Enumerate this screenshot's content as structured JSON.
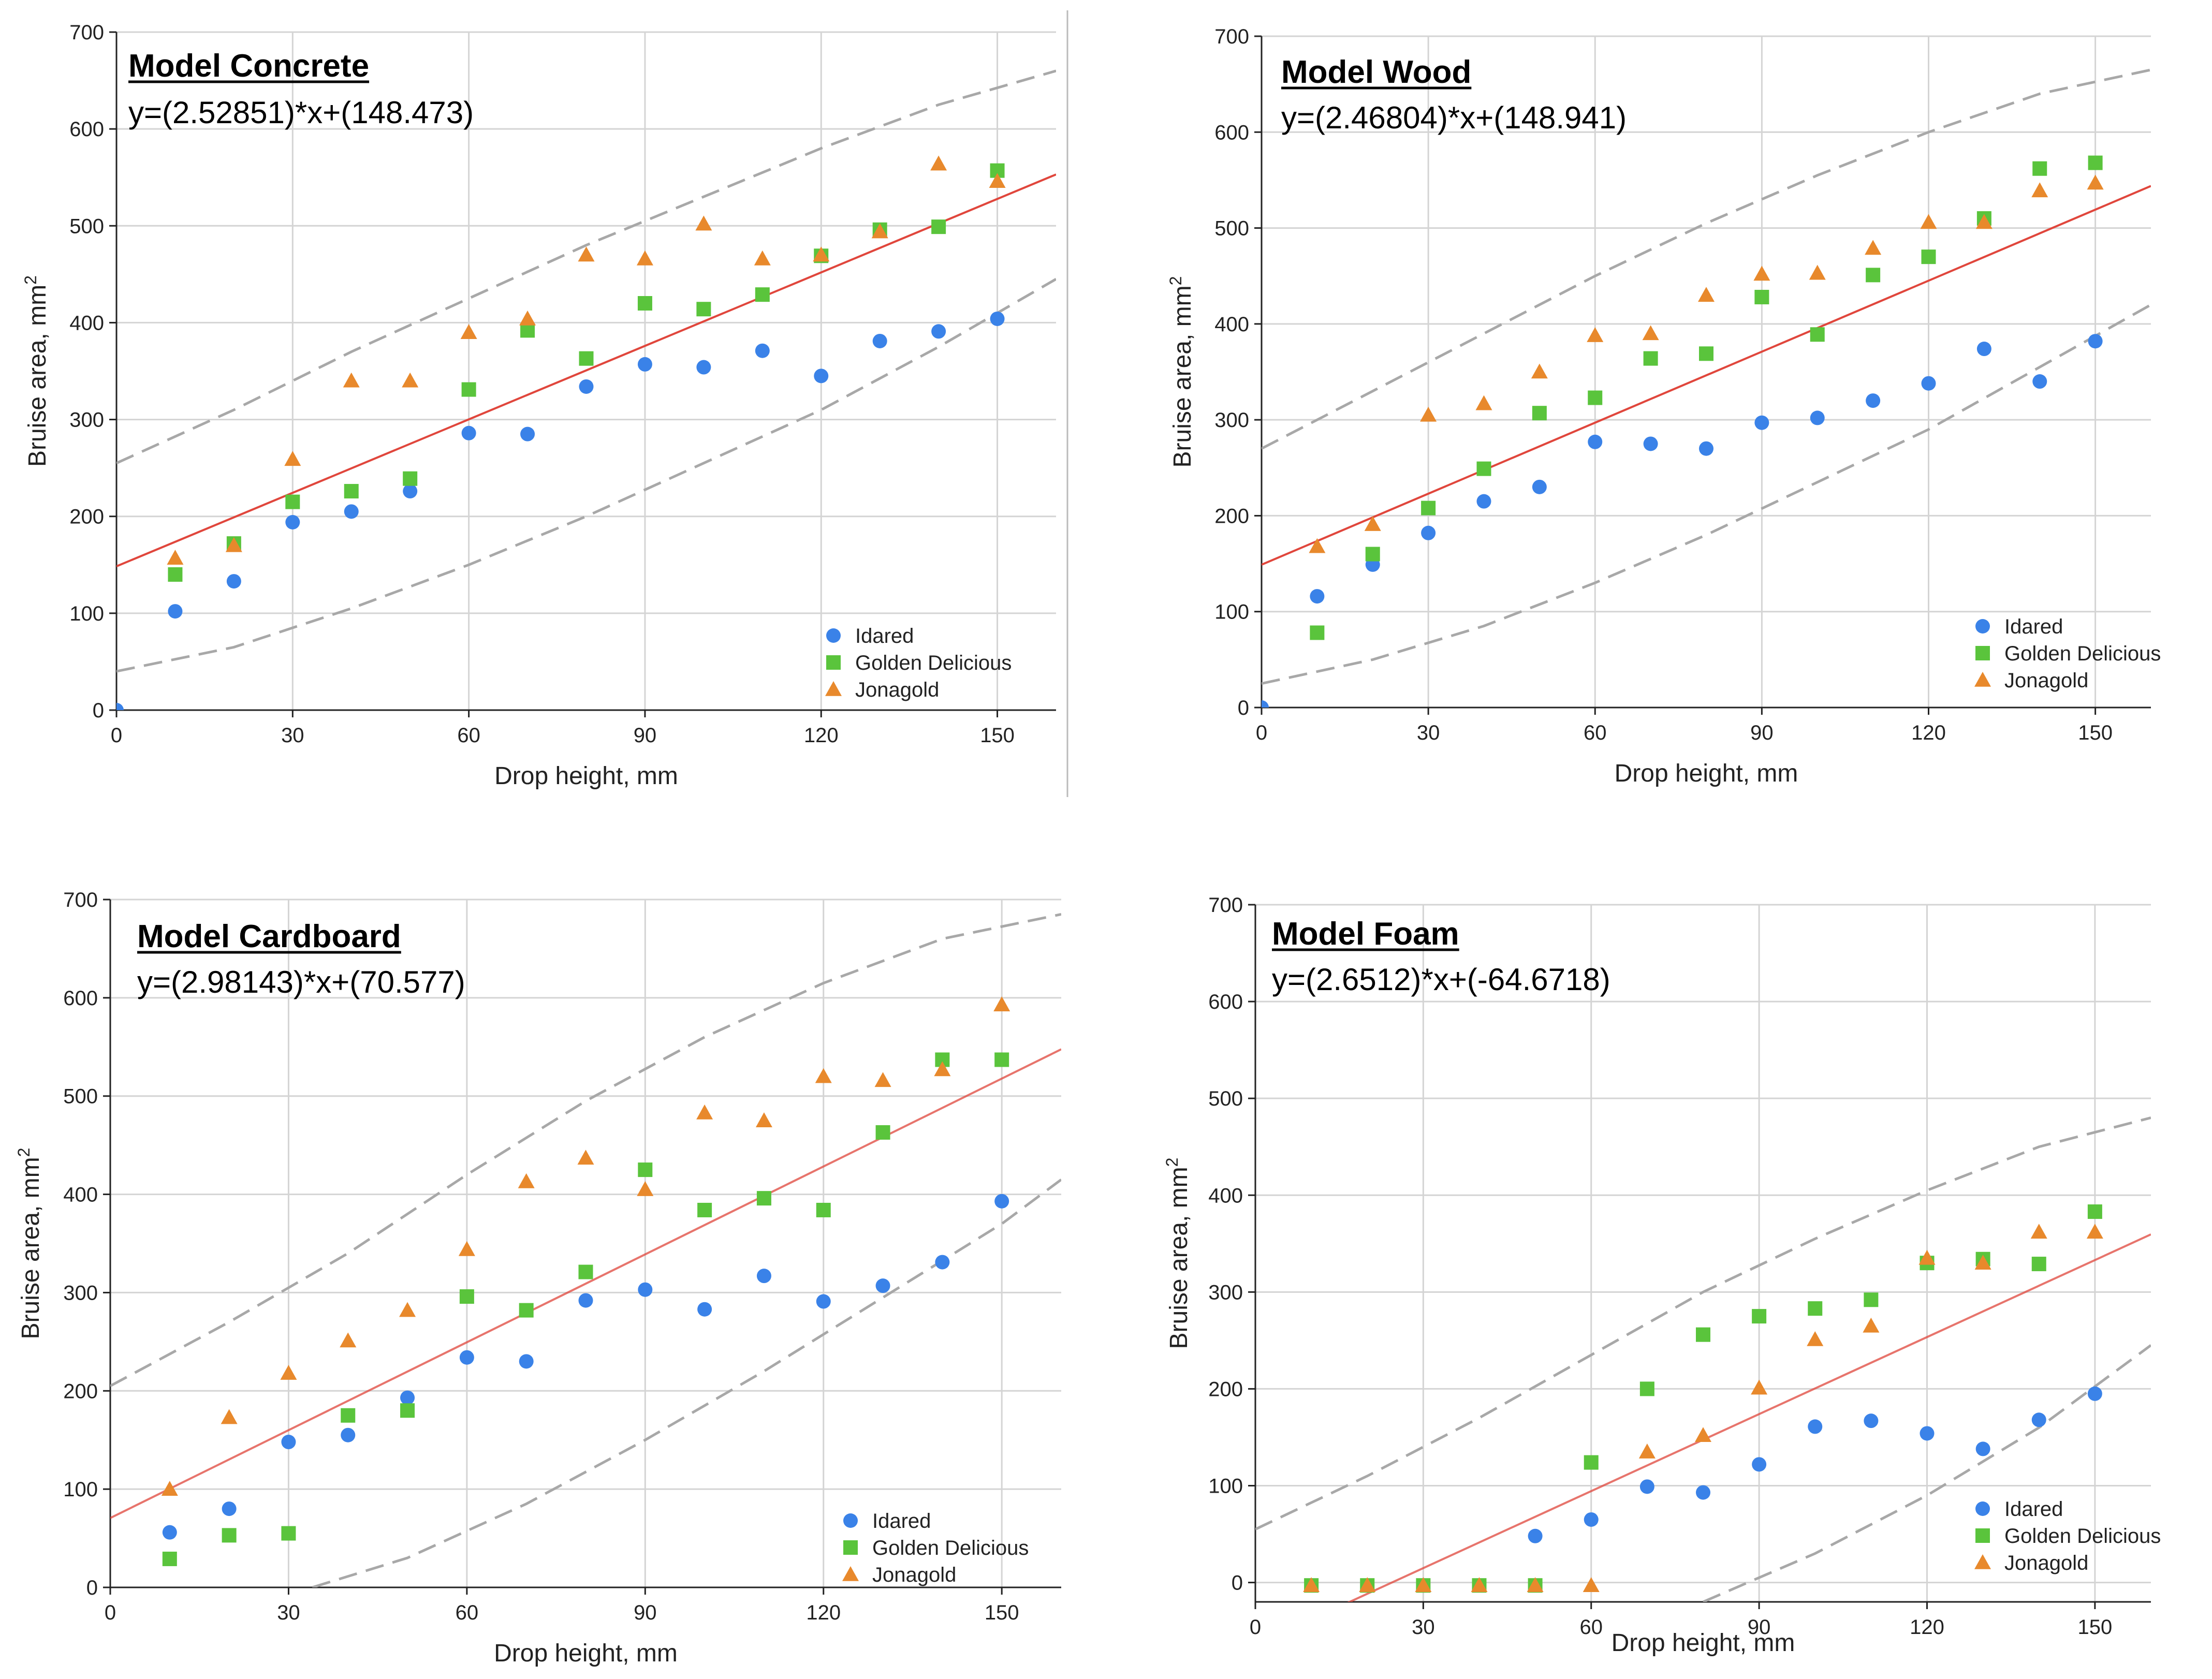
{
  "colors": {
    "idared": "#3a82e8",
    "golden": "#5ac43c",
    "jonagold": "#e8892c",
    "fit": "#e0463c",
    "band": "#a8a8a8",
    "grid": "#d4d4d4",
    "axis": "#222222"
  },
  "legend": [
    "Idared",
    "Golden Delicious",
    "Jonagold"
  ],
  "chart_data": [
    {
      "type": "scatter",
      "title": "Model Concrete",
      "equation": "y=(2.52851)*x+(148.473)",
      "xlabel": "Drop height, mm",
      "ylabel_main": "Bruise area, mm",
      "ylabel_sup": "2",
      "xlim": [
        0,
        160
      ],
      "ylim": [
        0,
        700
      ],
      "xticks": [
        0,
        30,
        60,
        90,
        120,
        150
      ],
      "yticks": [
        0,
        100,
        200,
        300,
        400,
        500,
        600,
        700
      ],
      "x": [
        0,
        10,
        20,
        30,
        40,
        50,
        60,
        70,
        80,
        90,
        100,
        110,
        120,
        130,
        140,
        150
      ],
      "fit": {
        "slope": 2.52851,
        "intercept": 148.473
      },
      "band_upper": [
        [
          0,
          255
        ],
        [
          20,
          310
        ],
        [
          40,
          370
        ],
        [
          60,
          425
        ],
        [
          80,
          480
        ],
        [
          100,
          530
        ],
        [
          120,
          580
        ],
        [
          140,
          625
        ],
        [
          160,
          660
        ]
      ],
      "band_lower": [
        [
          0,
          40
        ],
        [
          20,
          65
        ],
        [
          40,
          105
        ],
        [
          60,
          150
        ],
        [
          80,
          200
        ],
        [
          100,
          255
        ],
        [
          120,
          310
        ],
        [
          140,
          375
        ],
        [
          160,
          445
        ]
      ],
      "series": [
        {
          "name": "Idared",
          "marker": "circle",
          "values": [
            0,
            102,
            133,
            194,
            205,
            226,
            286,
            285,
            334,
            357,
            354,
            371,
            345,
            381,
            391,
            404
          ]
        },
        {
          "name": "Golden Delicious",
          "marker": "square",
          "values": [
            null,
            140,
            172,
            215,
            226,
            239,
            331,
            392,
            363,
            420,
            414,
            429,
            469,
            496,
            499,
            557
          ]
        },
        {
          "name": "Jonagold",
          "marker": "triangle",
          "values": [
            null,
            157,
            170,
            259,
            340,
            340,
            390,
            404,
            470,
            466,
            502,
            466,
            470,
            494,
            564,
            546
          ]
        }
      ]
    },
    {
      "type": "scatter",
      "title": "Model Wood",
      "equation": "y=(2.46804)*x+(148.941)",
      "xlabel": "Drop height, mm",
      "ylabel_main": "Bruise area, mm",
      "ylabel_sup": "2",
      "xlim": [
        0,
        160
      ],
      "ylim": [
        0,
        700
      ],
      "xticks": [
        0,
        30,
        60,
        90,
        120,
        150
      ],
      "yticks": [
        0,
        100,
        200,
        300,
        400,
        500,
        600,
        700
      ],
      "x": [
        0,
        10,
        20,
        30,
        40,
        50,
        60,
        70,
        80,
        90,
        100,
        110,
        120,
        130,
        140,
        150
      ],
      "fit": {
        "slope": 2.46804,
        "intercept": 148.941
      },
      "band_upper": [
        [
          0,
          270
        ],
        [
          20,
          330
        ],
        [
          40,
          390
        ],
        [
          60,
          450
        ],
        [
          80,
          505
        ],
        [
          100,
          555
        ],
        [
          120,
          600
        ],
        [
          140,
          640
        ],
        [
          160,
          665
        ]
      ],
      "band_lower": [
        [
          0,
          25
        ],
        [
          20,
          50
        ],
        [
          40,
          85
        ],
        [
          60,
          130
        ],
        [
          80,
          180
        ],
        [
          100,
          235
        ],
        [
          120,
          290
        ],
        [
          140,
          355
        ],
        [
          160,
          420
        ]
      ],
      "series": [
        {
          "name": "Idared",
          "marker": "circle",
          "values": [
            0,
            116,
            149,
            182,
            215,
            230,
            277,
            275,
            270,
            297,
            302,
            320,
            338,
            374,
            340,
            382
          ]
        },
        {
          "name": "Golden Delicious",
          "marker": "square",
          "values": [
            null,
            78,
            160,
            208,
            249,
            307,
            323,
            364,
            369,
            428,
            389,
            451,
            470,
            510,
            562,
            568
          ]
        },
        {
          "name": "Jonagold",
          "marker": "triangle",
          "values": [
            null,
            168,
            191,
            305,
            317,
            350,
            388,
            390,
            430,
            452,
            453,
            479,
            506,
            506,
            539,
            547
          ]
        }
      ]
    },
    {
      "type": "scatter",
      "title": "Model Cardboard",
      "equation": "y=(2.98143)*x+(70.577)",
      "xlabel": "Drop height, mm",
      "ylabel_main": "Bruise area, mm",
      "ylabel_sup": "2",
      "xlim": [
        0,
        160
      ],
      "ylim": [
        0,
        700
      ],
      "xticks": [
        0,
        30,
        60,
        90,
        120,
        150
      ],
      "yticks": [
        0,
        100,
        200,
        300,
        400,
        500,
        600,
        700
      ],
      "x": [
        10,
        20,
        30,
        40,
        50,
        60,
        70,
        80,
        90,
        100,
        110,
        120,
        130,
        140,
        150
      ],
      "fit": {
        "slope": 2.98143,
        "intercept": 70.577
      },
      "band_upper": [
        [
          0,
          205
        ],
        [
          20,
          270
        ],
        [
          40,
          340
        ],
        [
          60,
          420
        ],
        [
          80,
          495
        ],
        [
          100,
          560
        ],
        [
          120,
          615
        ],
        [
          140,
          660
        ],
        [
          160,
          685
        ]
      ],
      "band_lower": [
        [
          34,
          0
        ],
        [
          50,
          30
        ],
        [
          70,
          85
        ],
        [
          90,
          150
        ],
        [
          110,
          220
        ],
        [
          130,
          295
        ],
        [
          150,
          370
        ],
        [
          160,
          415
        ]
      ],
      "series": [
        {
          "name": "Idared",
          "marker": "circle",
          "values": [
            56,
            80,
            148,
            155,
            193,
            234,
            230,
            292,
            303,
            283,
            317,
            291,
            307,
            331,
            393
          ]
        },
        {
          "name": "Golden Delicious",
          "marker": "square",
          "values": [
            29,
            53,
            55,
            175,
            180,
            296,
            282,
            321,
            425,
            384,
            396,
            384,
            463,
            537,
            537
          ]
        },
        {
          "name": "Jonagold",
          "marker": "triangle",
          "values": [
            100,
            173,
            218,
            251,
            282,
            344,
            413,
            437,
            405,
            483,
            475,
            520,
            516,
            527,
            593
          ]
        }
      ]
    },
    {
      "type": "scatter",
      "title": "Model Foam",
      "equation": "y=(2.6512)*x+(-64.6718)",
      "xlabel": "Drop height, mm",
      "ylabel_main": "Bruise area, mm",
      "ylabel_sup": "2",
      "xlim": [
        0,
        160
      ],
      "ylim": [
        -20,
        700
      ],
      "xticks": [
        0,
        30,
        60,
        90,
        120,
        150
      ],
      "yticks": [
        0,
        100,
        200,
        300,
        400,
        500,
        600,
        700
      ],
      "x": [
        10,
        20,
        30,
        40,
        50,
        60,
        70,
        80,
        90,
        100,
        110,
        120,
        130,
        140,
        150
      ],
      "fit": {
        "slope": 2.6512,
        "intercept": -64.6718
      },
      "band_upper": [
        [
          0,
          55
        ],
        [
          20,
          110
        ],
        [
          40,
          170
        ],
        [
          60,
          235
        ],
        [
          80,
          300
        ],
        [
          100,
          355
        ],
        [
          120,
          405
        ],
        [
          140,
          450
        ],
        [
          160,
          480
        ]
      ],
      "band_lower": [
        [
          80,
          -20
        ],
        [
          90,
          5
        ],
        [
          100,
          30
        ],
        [
          120,
          90
        ],
        [
          140,
          160
        ],
        [
          160,
          245
        ]
      ],
      "series": [
        {
          "name": "Idared",
          "marker": "circle",
          "values": [
            null,
            null,
            null,
            null,
            48,
            65,
            99,
            93,
            122,
            161,
            167,
            154,
            138,
            168,
            195
          ]
        },
        {
          "name": "Golden Delicious",
          "marker": "square",
          "values": [
            -3,
            -3,
            -3,
            -3,
            -3,
            124,
            200,
            256,
            275,
            283,
            292,
            330,
            334,
            329,
            383
          ]
        },
        {
          "name": "Jonagold",
          "marker": "triangle",
          "values": [
            -3,
            -3,
            -3,
            -3,
            -3,
            -3,
            135,
            152,
            201,
            251,
            265,
            335,
            330,
            362,
            362
          ]
        }
      ]
    }
  ]
}
